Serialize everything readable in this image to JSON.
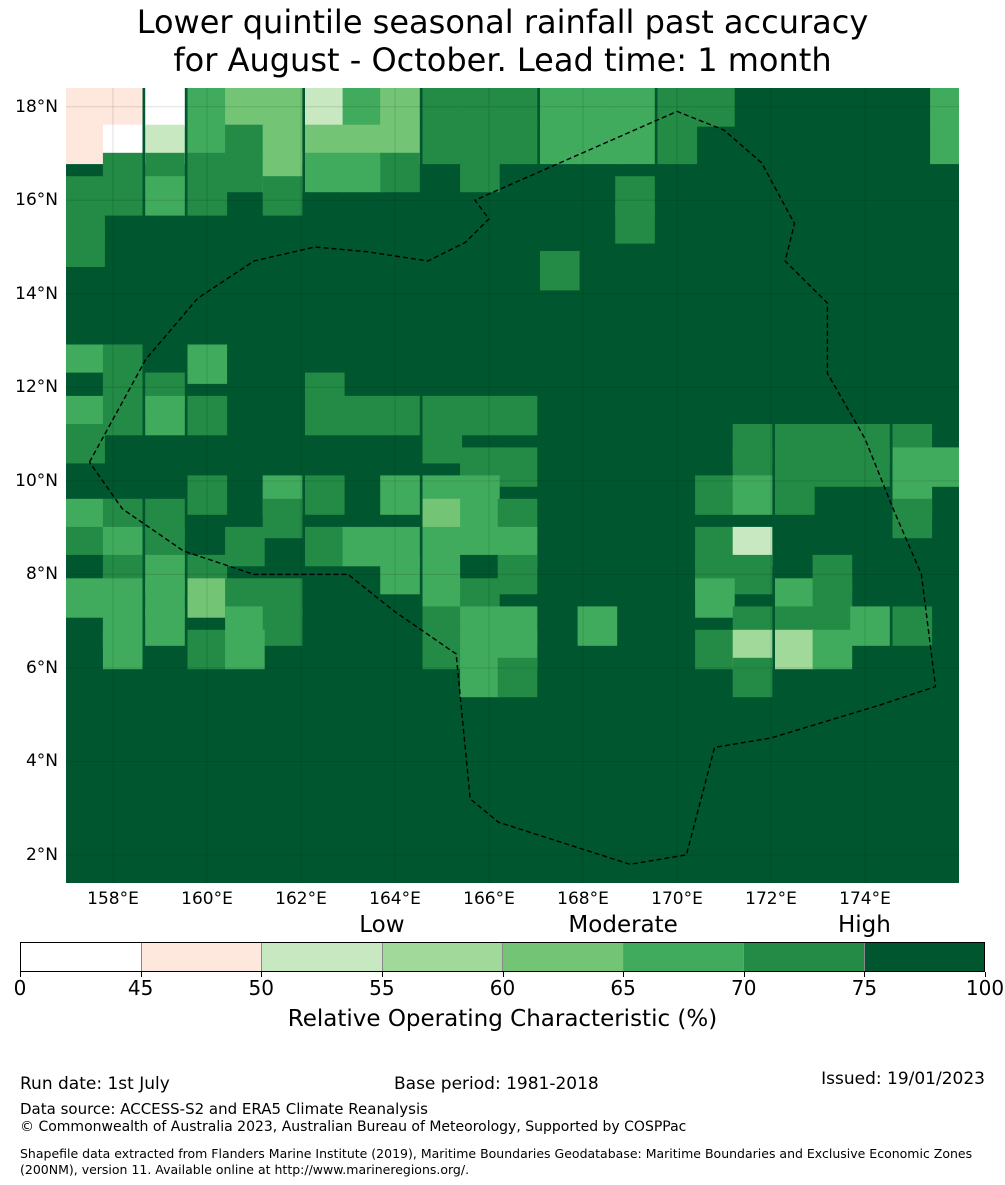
{
  "title": {
    "line1": "Lower quintile seasonal rainfall past accuracy",
    "line2": "for August - October. Lead time: 1 month"
  },
  "map": {
    "lat_range": [
      1.4,
      18.4
    ],
    "lon_range": [
      157.0,
      176.0
    ],
    "lat_ticks": [
      "18°N",
      "16°N",
      "14°N",
      "12°N",
      "10°N",
      "8°N",
      "6°N",
      "4°N",
      "2°N"
    ],
    "lat_tick_values": [
      18,
      16,
      14,
      12,
      10,
      8,
      6,
      4,
      2
    ],
    "lon_ticks": [
      "158°E",
      "160°E",
      "162°E",
      "164°E",
      "166°E",
      "168°E",
      "170°E",
      "172°E",
      "174°E"
    ],
    "lon_tick_values": [
      158,
      160,
      162,
      164,
      166,
      168,
      170,
      172,
      174
    ],
    "grid_cell_deg": 0.83,
    "default_class": 7,
    "class_colors": [
      "#ffffff",
      "#fee7dd",
      "#c7e8c0",
      "#a1d99b",
      "#74c476",
      "#41ab5d",
      "#238b45",
      "#00572f"
    ],
    "eez_boundary_style": "dashed",
    "eez_boundary": [
      [
        157.5,
        10.4
      ],
      [
        158.7,
        12.6
      ],
      [
        159.8,
        13.9
      ],
      [
        161.0,
        14.7
      ],
      [
        162.3,
        15.0
      ],
      [
        163.4,
        14.9
      ],
      [
        164.7,
        14.7
      ],
      [
        165.5,
        15.1
      ],
      [
        166.0,
        15.6
      ],
      [
        165.7,
        16.0
      ],
      [
        170.0,
        17.9
      ],
      [
        171.0,
        17.5
      ],
      [
        171.8,
        16.8
      ],
      [
        172.5,
        15.5
      ],
      [
        172.3,
        14.7
      ],
      [
        173.2,
        13.8
      ],
      [
        173.2,
        12.3
      ],
      [
        174.0,
        10.9
      ],
      [
        174.6,
        9.4
      ],
      [
        175.2,
        8.0
      ],
      [
        175.5,
        5.6
      ],
      [
        174.3,
        5.2
      ],
      [
        172.0,
        4.5
      ],
      [
        170.8,
        4.3
      ],
      [
        170.2,
        2.0
      ],
      [
        169.0,
        1.8
      ],
      [
        166.2,
        2.7
      ],
      [
        165.6,
        3.2
      ],
      [
        165.3,
        6.3
      ],
      [
        164.0,
        7.2
      ],
      [
        163.0,
        8.0
      ],
      [
        161.0,
        8.0
      ],
      [
        159.5,
        8.5
      ],
      [
        158.2,
        9.4
      ],
      [
        157.5,
        10.4
      ]
    ],
    "cells": [
      {
        "lon": 157.4,
        "lat": 18.0,
        "c": 1
      },
      {
        "lon": 158.2,
        "lat": 18.0,
        "c": 1
      },
      {
        "lon": 159.1,
        "lat": 18.0,
        "c": 0
      },
      {
        "lon": 160.0,
        "lat": 18.0,
        "c": 5
      },
      {
        "lon": 160.8,
        "lat": 18.0,
        "c": 4
      },
      {
        "lon": 161.6,
        "lat": 18.0,
        "c": 4
      },
      {
        "lon": 162.5,
        "lat": 18.0,
        "c": 2
      },
      {
        "lon": 163.3,
        "lat": 18.0,
        "c": 5
      },
      {
        "lon": 164.1,
        "lat": 18.0,
        "c": 4
      },
      {
        "lon": 165.0,
        "lat": 18.0,
        "c": 6
      },
      {
        "lon": 165.8,
        "lat": 18.0,
        "c": 6
      },
      {
        "lon": 166.6,
        "lat": 18.0,
        "c": 6
      },
      {
        "lon": 167.5,
        "lat": 18.0,
        "c": 5
      },
      {
        "lon": 168.3,
        "lat": 18.0,
        "c": 5
      },
      {
        "lon": 169.1,
        "lat": 18.0,
        "c": 5
      },
      {
        "lon": 170.0,
        "lat": 18.0,
        "c": 6
      },
      {
        "lon": 170.8,
        "lat": 18.0,
        "c": 6
      },
      {
        "lon": 175.8,
        "lat": 18.0,
        "c": 5
      },
      {
        "lon": 157.4,
        "lat": 17.2,
        "c": 1
      },
      {
        "lon": 158.2,
        "lat": 17.2,
        "c": 0
      },
      {
        "lon": 159.1,
        "lat": 17.2,
        "c": 2
      },
      {
        "lon": 160.0,
        "lat": 17.2,
        "c": 5
      },
      {
        "lon": 160.8,
        "lat": 17.2,
        "c": 6
      },
      {
        "lon": 161.6,
        "lat": 17.2,
        "c": 4
      },
      {
        "lon": 162.5,
        "lat": 17.2,
        "c": 4
      },
      {
        "lon": 163.3,
        "lat": 17.2,
        "c": 4
      },
      {
        "lon": 164.1,
        "lat": 17.2,
        "c": 4
      },
      {
        "lon": 165.0,
        "lat": 17.2,
        "c": 6
      },
      {
        "lon": 165.8,
        "lat": 17.2,
        "c": 6
      },
      {
        "lon": 166.6,
        "lat": 17.2,
        "c": 6
      },
      {
        "lon": 167.5,
        "lat": 17.2,
        "c": 5
      },
      {
        "lon": 168.3,
        "lat": 17.2,
        "c": 5
      },
      {
        "lon": 169.1,
        "lat": 17.2,
        "c": 5
      },
      {
        "lon": 170.0,
        "lat": 17.2,
        "c": 6
      },
      {
        "lon": 175.8,
        "lat": 17.2,
        "c": 5
      },
      {
        "lon": 158.2,
        "lat": 16.6,
        "c": 6
      },
      {
        "lon": 159.1,
        "lat": 16.6,
        "c": 6
      },
      {
        "lon": 160.0,
        "lat": 16.6,
        "c": 6
      },
      {
        "lon": 160.8,
        "lat": 16.6,
        "c": 6
      },
      {
        "lon": 161.6,
        "lat": 16.6,
        "c": 4
      },
      {
        "lon": 162.5,
        "lat": 16.6,
        "c": 5
      },
      {
        "lon": 163.3,
        "lat": 16.6,
        "c": 5
      },
      {
        "lon": 164.1,
        "lat": 16.6,
        "c": 6
      },
      {
        "lon": 165.8,
        "lat": 16.6,
        "c": 6
      },
      {
        "lon": 157.4,
        "lat": 16.1,
        "c": 6
      },
      {
        "lon": 158.2,
        "lat": 16.1,
        "c": 6
      },
      {
        "lon": 159.1,
        "lat": 16.1,
        "c": 5
      },
      {
        "lon": 160.0,
        "lat": 16.1,
        "c": 6
      },
      {
        "lon": 161.6,
        "lat": 16.1,
        "c": 6
      },
      {
        "lon": 169.1,
        "lat": 16.1,
        "c": 6
      },
      {
        "lon": 157.4,
        "lat": 15.5,
        "c": 6
      },
      {
        "lon": 169.1,
        "lat": 15.5,
        "c": 6
      },
      {
        "lon": 157.4,
        "lat": 15.0,
        "c": 6
      },
      {
        "lon": 167.5,
        "lat": 14.5,
        "c": 6
      },
      {
        "lon": 157.4,
        "lat": 12.5,
        "c": 5
      },
      {
        "lon": 158.2,
        "lat": 12.5,
        "c": 6
      },
      {
        "lon": 160.0,
        "lat": 12.5,
        "c": 5
      },
      {
        "lon": 157.4,
        "lat": 11.9,
        "c": 7
      },
      {
        "lon": 158.2,
        "lat": 11.9,
        "c": 6
      },
      {
        "lon": 159.1,
        "lat": 11.9,
        "c": 6
      },
      {
        "lon": 162.5,
        "lat": 11.9,
        "c": 6
      },
      {
        "lon": 157.4,
        "lat": 11.4,
        "c": 5
      },
      {
        "lon": 158.2,
        "lat": 11.4,
        "c": 6
      },
      {
        "lon": 159.1,
        "lat": 11.4,
        "c": 5
      },
      {
        "lon": 160.0,
        "lat": 11.4,
        "c": 6
      },
      {
        "lon": 162.5,
        "lat": 11.4,
        "c": 6
      },
      {
        "lon": 163.3,
        "lat": 11.4,
        "c": 6
      },
      {
        "lon": 164.1,
        "lat": 11.4,
        "c": 6
      },
      {
        "lon": 165.0,
        "lat": 11.4,
        "c": 6
      },
      {
        "lon": 165.8,
        "lat": 11.4,
        "c": 6
      },
      {
        "lon": 166.6,
        "lat": 11.4,
        "c": 6
      },
      {
        "lon": 157.4,
        "lat": 10.8,
        "c": 6
      },
      {
        "lon": 165.0,
        "lat": 10.8,
        "c": 6
      },
      {
        "lon": 171.6,
        "lat": 10.8,
        "c": 6
      },
      {
        "lon": 172.5,
        "lat": 10.8,
        "c": 6
      },
      {
        "lon": 173.3,
        "lat": 10.8,
        "c": 6
      },
      {
        "lon": 174.1,
        "lat": 10.8,
        "c": 6
      },
      {
        "lon": 175.0,
        "lat": 10.8,
        "c": 6
      },
      {
        "lon": 165.8,
        "lat": 10.3,
        "c": 6
      },
      {
        "lon": 166.6,
        "lat": 10.3,
        "c": 6
      },
      {
        "lon": 171.6,
        "lat": 10.3,
        "c": 6
      },
      {
        "lon": 172.5,
        "lat": 10.3,
        "c": 6
      },
      {
        "lon": 173.3,
        "lat": 10.3,
        "c": 6
      },
      {
        "lon": 174.1,
        "lat": 10.3,
        "c": 6
      },
      {
        "lon": 175.0,
        "lat": 10.3,
        "c": 5
      },
      {
        "lon": 175.8,
        "lat": 10.3,
        "c": 5
      },
      {
        "lon": 160.0,
        "lat": 9.7,
        "c": 6
      },
      {
        "lon": 161.6,
        "lat": 9.7,
        "c": 5
      },
      {
        "lon": 162.5,
        "lat": 9.7,
        "c": 6
      },
      {
        "lon": 164.1,
        "lat": 9.7,
        "c": 5
      },
      {
        "lon": 165.0,
        "lat": 9.7,
        "c": 5
      },
      {
        "lon": 165.8,
        "lat": 9.7,
        "c": 5
      },
      {
        "lon": 170.8,
        "lat": 9.7,
        "c": 6
      },
      {
        "lon": 171.6,
        "lat": 9.7,
        "c": 5
      },
      {
        "lon": 172.5,
        "lat": 9.7,
        "c": 6
      },
      {
        "lon": 175.0,
        "lat": 9.7,
        "c": 5
      },
      {
        "lon": 157.4,
        "lat": 9.2,
        "c": 5
      },
      {
        "lon": 158.2,
        "lat": 9.2,
        "c": 6
      },
      {
        "lon": 159.1,
        "lat": 9.2,
        "c": 6
      },
      {
        "lon": 161.6,
        "lat": 9.2,
        "c": 6
      },
      {
        "lon": 165.0,
        "lat": 9.2,
        "c": 4
      },
      {
        "lon": 165.8,
        "lat": 9.2,
        "c": 5
      },
      {
        "lon": 166.6,
        "lat": 9.2,
        "c": 6
      },
      {
        "lon": 175.0,
        "lat": 9.2,
        "c": 6
      },
      {
        "lon": 157.4,
        "lat": 8.6,
        "c": 6
      },
      {
        "lon": 158.2,
        "lat": 8.6,
        "c": 5
      },
      {
        "lon": 159.1,
        "lat": 8.6,
        "c": 6
      },
      {
        "lon": 160.8,
        "lat": 8.6,
        "c": 6
      },
      {
        "lon": 162.5,
        "lat": 8.6,
        "c": 6
      },
      {
        "lon": 163.3,
        "lat": 8.6,
        "c": 5
      },
      {
        "lon": 164.1,
        "lat": 8.6,
        "c": 5
      },
      {
        "lon": 165.0,
        "lat": 8.6,
        "c": 5
      },
      {
        "lon": 165.8,
        "lat": 8.6,
        "c": 5
      },
      {
        "lon": 166.6,
        "lat": 8.6,
        "c": 5
      },
      {
        "lon": 170.8,
        "lat": 8.6,
        "c": 6
      },
      {
        "lon": 171.6,
        "lat": 8.6,
        "c": 2
      },
      {
        "lon": 157.4,
        "lat": 8.0,
        "c": 7
      },
      {
        "lon": 158.2,
        "lat": 8.0,
        "c": 6
      },
      {
        "lon": 159.1,
        "lat": 8.0,
        "c": 5
      },
      {
        "lon": 160.0,
        "lat": 8.0,
        "c": 6
      },
      {
        "lon": 164.1,
        "lat": 8.0,
        "c": 5
      },
      {
        "lon": 165.0,
        "lat": 8.0,
        "c": 5
      },
      {
        "lon": 165.8,
        "lat": 8.0,
        "c": 7
      },
      {
        "lon": 166.6,
        "lat": 8.0,
        "c": 6
      },
      {
        "lon": 170.8,
        "lat": 8.0,
        "c": 6
      },
      {
        "lon": 171.6,
        "lat": 8.0,
        "c": 6
      },
      {
        "lon": 173.3,
        "lat": 8.0,
        "c": 6
      },
      {
        "lon": 157.4,
        "lat": 7.5,
        "c": 5
      },
      {
        "lon": 158.2,
        "lat": 7.5,
        "c": 5
      },
      {
        "lon": 159.1,
        "lat": 7.5,
        "c": 5
      },
      {
        "lon": 160.0,
        "lat": 7.5,
        "c": 4
      },
      {
        "lon": 160.8,
        "lat": 7.5,
        "c": 6
      },
      {
        "lon": 161.6,
        "lat": 7.5,
        "c": 6
      },
      {
        "lon": 165.0,
        "lat": 7.5,
        "c": 5
      },
      {
        "lon": 165.8,
        "lat": 7.5,
        "c": 6
      },
      {
        "lon": 170.8,
        "lat": 7.5,
        "c": 5
      },
      {
        "lon": 172.5,
        "lat": 7.5,
        "c": 5
      },
      {
        "lon": 173.3,
        "lat": 7.5,
        "c": 6
      },
      {
        "lon": 158.2,
        "lat": 6.9,
        "c": 5
      },
      {
        "lon": 159.1,
        "lat": 6.9,
        "c": 5
      },
      {
        "lon": 160.8,
        "lat": 6.9,
        "c": 5
      },
      {
        "lon": 161.6,
        "lat": 6.9,
        "c": 6
      },
      {
        "lon": 165.0,
        "lat": 6.9,
        "c": 6
      },
      {
        "lon": 165.8,
        "lat": 6.9,
        "c": 5
      },
      {
        "lon": 166.6,
        "lat": 6.9,
        "c": 5
      },
      {
        "lon": 168.3,
        "lat": 6.9,
        "c": 5
      },
      {
        "lon": 171.6,
        "lat": 6.9,
        "c": 6
      },
      {
        "lon": 172.5,
        "lat": 6.9,
        "c": 6
      },
      {
        "lon": 173.3,
        "lat": 6.9,
        "c": 6
      },
      {
        "lon": 174.1,
        "lat": 6.9,
        "c": 5
      },
      {
        "lon": 175.0,
        "lat": 6.9,
        "c": 6
      },
      {
        "lon": 158.2,
        "lat": 6.4,
        "c": 5
      },
      {
        "lon": 160.0,
        "lat": 6.4,
        "c": 6
      },
      {
        "lon": 160.8,
        "lat": 6.4,
        "c": 5
      },
      {
        "lon": 165.0,
        "lat": 6.4,
        "c": 6
      },
      {
        "lon": 165.8,
        "lat": 6.4,
        "c": 5
      },
      {
        "lon": 166.6,
        "lat": 6.4,
        "c": 5
      },
      {
        "lon": 170.8,
        "lat": 6.4,
        "c": 6
      },
      {
        "lon": 171.6,
        "lat": 6.4,
        "c": 3
      },
      {
        "lon": 172.5,
        "lat": 6.4,
        "c": 3
      },
      {
        "lon": 173.3,
        "lat": 6.4,
        "c": 5
      },
      {
        "lon": 165.8,
        "lat": 5.8,
        "c": 5
      },
      {
        "lon": 166.6,
        "lat": 5.8,
        "c": 6
      },
      {
        "lon": 171.6,
        "lat": 5.8,
        "c": 6
      }
    ]
  },
  "colorbar": {
    "category_words": [
      "Low",
      "Moderate",
      "High"
    ],
    "category_word_values": [
      55,
      65,
      75
    ],
    "colors": [
      "#ffffff",
      "#fee7dd",
      "#c7e8c0",
      "#a1d99b",
      "#74c476",
      "#41ab5d",
      "#238b45",
      "#00572f"
    ],
    "ticks": [
      "0",
      "45",
      "50",
      "55",
      "60",
      "65",
      "70",
      "75",
      "100"
    ],
    "label": "Relative Operating Characteristic (%)"
  },
  "footer": {
    "run_date": "Run date: 1st July",
    "base_period": "Base period: 1981-2018",
    "issued": "Issued: 19/01/2023",
    "data_source": "Data source: ACCESS-S2 and ERA5 Climate Reanalysis",
    "copyright": "© Commonwealth of Australia 2023, Australian Bureau of Meteorology, Supported by COSPPac",
    "shapefile": "Shapefile data extracted from Flanders Marine Institute (2019), Maritime Boundaries Geodatabase: Maritime Boundaries and Exclusive Economic Zones (200NM), version 11. Available online at http://www.marineregions.org/."
  }
}
